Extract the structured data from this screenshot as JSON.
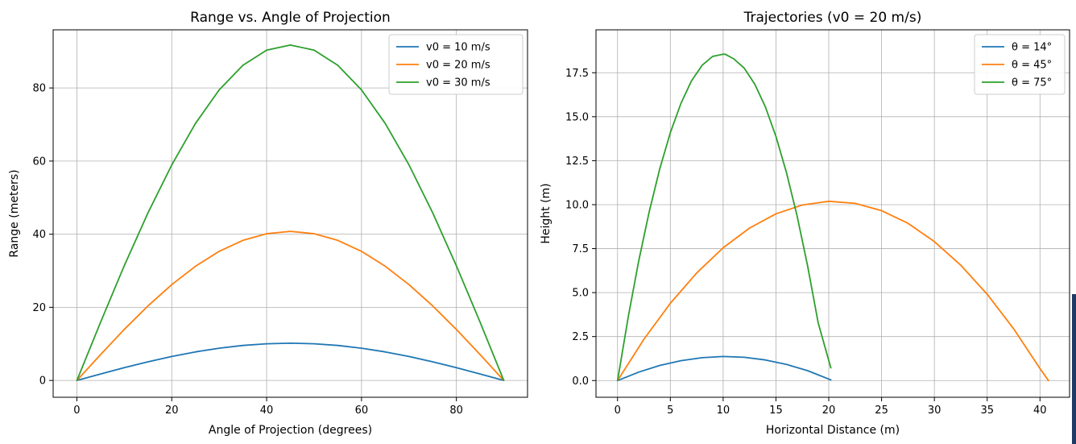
{
  "colors": {
    "series": [
      "#1f77b4",
      "#ff7f0e",
      "#2ca02c"
    ],
    "grid": "#b0b0b0"
  },
  "chart_data": [
    {
      "type": "line",
      "title": "Range vs. Angle of Projection",
      "xlabel": "Angle of Projection (degrees)",
      "ylabel": "Range (meters)",
      "xlim": [
        -5,
        95
      ],
      "ylim": [
        -4.6,
        95.9
      ],
      "xticks": [
        0,
        20,
        40,
        60,
        80
      ],
      "yticks": [
        0,
        20,
        40,
        60,
        80
      ],
      "grid": true,
      "legend": "top-right",
      "x": [
        0,
        5,
        10,
        15,
        20,
        25,
        30,
        35,
        40,
        45,
        50,
        55,
        60,
        65,
        70,
        75,
        80,
        85,
        90
      ],
      "series": [
        {
          "name": "v0 = 10 m/s",
          "values": [
            0,
            1.77,
            3.49,
            5.1,
            6.55,
            7.81,
            8.83,
            9.58,
            10.04,
            10.19,
            10.04,
            9.58,
            8.83,
            7.81,
            6.55,
            5.1,
            3.49,
            1.77,
            0
          ]
        },
        {
          "name": "v0 = 20 m/s",
          "values": [
            0,
            7.08,
            13.95,
            20.39,
            26.21,
            31.24,
            35.31,
            38.31,
            40.15,
            40.77,
            40.15,
            38.31,
            35.31,
            31.24,
            26.21,
            20.39,
            13.95,
            7.08,
            0
          ]
        },
        {
          "name": "v0 = 30 m/s",
          "values": [
            0,
            15.94,
            31.38,
            45.87,
            58.97,
            70.28,
            79.45,
            86.2,
            90.34,
            91.74,
            90.34,
            86.2,
            79.45,
            70.28,
            58.97,
            45.87,
            31.38,
            15.94,
            0
          ]
        }
      ]
    },
    {
      "type": "line",
      "title": "Trajectories (v0 = 20 m/s)",
      "xlabel": "Horizontal Distance (m)",
      "ylabel": "Height (m)",
      "xlim": [
        -2.04,
        42.8
      ],
      "ylim": [
        -0.95,
        19.94
      ],
      "xticks": [
        0,
        5,
        10,
        15,
        20,
        25,
        30,
        35,
        40
      ],
      "yticks": [
        0.0,
        2.5,
        5.0,
        7.5,
        10.0,
        12.5,
        15.0,
        17.5
      ],
      "ytick_labels": [
        "0.0",
        "2.5",
        "5.0",
        "7.5",
        "10.0",
        "12.5",
        "15.0",
        "17.5"
      ],
      "grid": true,
      "legend": "top-right",
      "series": [
        {
          "name": "θ = 14°",
          "x": [
            0,
            2,
            4,
            6,
            8,
            10,
            12,
            14,
            16,
            18,
            20.2
          ],
          "y": [
            0,
            0.48,
            0.86,
            1.13,
            1.3,
            1.37,
            1.32,
            1.17,
            0.92,
            0.56,
            0.04
          ]
        },
        {
          "name": "θ = 45°",
          "x": [
            0,
            2.5,
            5,
            7.5,
            10,
            12.5,
            15,
            17.5,
            20,
            22.5,
            25,
            27.5,
            30,
            32.5,
            35,
            37.5,
            40,
            40.8
          ],
          "y": [
            0,
            2.35,
            4.39,
            6.12,
            7.55,
            8.67,
            9.48,
            9.98,
            10.19,
            10.07,
            9.66,
            8.94,
            7.9,
            6.56,
            4.91,
            2.95,
            0.68,
            0
          ]
        },
        {
          "name": "θ = 75°",
          "x": [
            0,
            1,
            2,
            3,
            4,
            5,
            6,
            7,
            8,
            9,
            10,
            10.2,
            11,
            12,
            13,
            14,
            15,
            16,
            17,
            18,
            19,
            20.2
          ],
          "y": [
            0,
            3.58,
            6.79,
            9.6,
            12.04,
            14.09,
            15.75,
            17.03,
            17.92,
            18.43,
            18.55,
            18.55,
            18.29,
            17.76,
            16.85,
            15.56,
            13.87,
            11.81,
            9.36,
            6.51,
            3.28,
            0.72
          ]
        }
      ]
    }
  ]
}
